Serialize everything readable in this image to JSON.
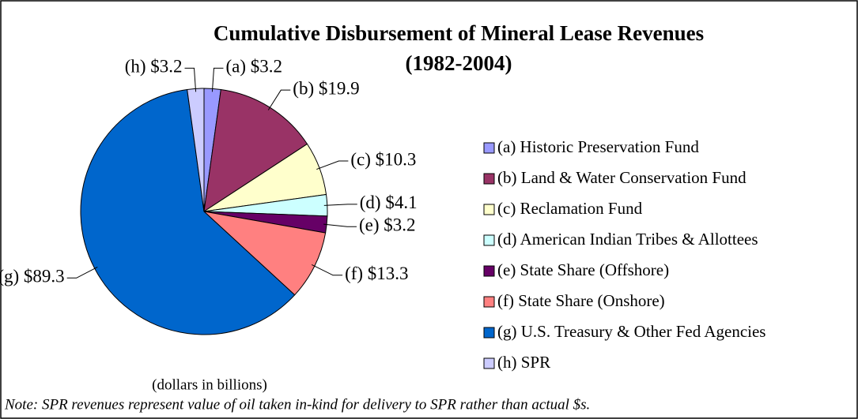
{
  "chart_data": {
    "type": "pie",
    "title": "Cumulative Disbursement of Mineral Lease Revenues",
    "subtitle": "(1982-2004)",
    "categories": [
      "(a) Historic Preservation Fund",
      "(b) Land & Water Conservation Fund",
      "(c) Reclamation Fund",
      "(d) American Indian Tribes & Allottees",
      "(e) State Share (Offshore)",
      "(f) State Share (Onshore)",
      "(g) U.S. Treasury & Other Fed Agencies",
      "(h) SPR"
    ],
    "values": [
      3.2,
      19.9,
      10.3,
      4.1,
      3.2,
      13.3,
      89.3,
      3.2
    ],
    "value_labels": [
      "(a) $3.2",
      "(b) $19.9",
      "(c) $10.3",
      "(d) $4.1",
      "(e) $3.2",
      "(f) $13.3",
      "(g) $89.3",
      "(h) $3.2"
    ],
    "colors": [
      "#9999ff",
      "#993366",
      "#ffffcc",
      "#ccffff",
      "#660066",
      "#ff8080",
      "#0066cc",
      "#ccccff"
    ],
    "legend": "right",
    "annotations": [
      "(dollars in billions)",
      "Note: SPR revenues represent value of oil taken in-kind for delivery to SPR rather than actual $s."
    ]
  }
}
